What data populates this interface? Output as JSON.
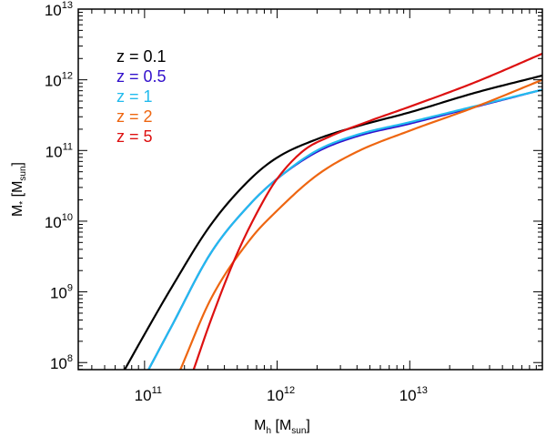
{
  "chart_data": {
    "type": "line",
    "xlabel": {
      "main": "M",
      "sub": "h",
      "unit_open": " [M",
      "unit_sub": "sun",
      "unit_close": "]"
    },
    "ylabel": {
      "main": "M",
      "sub": "*",
      "unit_open": " [M",
      "unit_sub": "sun",
      "unit_close": "]"
    },
    "xscale": "log",
    "yscale": "log",
    "xlim_log10": [
      10.5,
      14.0
    ],
    "ylim_log10": [
      7.9,
      13.0
    ],
    "x_major_ticks": [
      {
        "base": "10",
        "exp": "11",
        "log10": 11
      },
      {
        "base": "10",
        "exp": "12",
        "log10": 12
      },
      {
        "base": "10",
        "exp": "13",
        "log10": 13
      }
    ],
    "y_major_ticks": [
      {
        "base": "10",
        "exp": "8",
        "log10": 8
      },
      {
        "base": "10",
        "exp": "9",
        "log10": 9
      },
      {
        "base": "10",
        "exp": "10",
        "log10": 10
      },
      {
        "base": "10",
        "exp": "11",
        "log10": 11
      },
      {
        "base": "10",
        "exp": "12",
        "log10": 12
      },
      {
        "base": "10",
        "exp": "13",
        "log10": 13
      }
    ],
    "legend_position": "top-left",
    "series": [
      {
        "name": "z = 0.1",
        "color": "#000000",
        "log_mh": [
          10.85,
          11.0,
          11.2,
          11.5,
          11.8,
          12.0,
          12.3,
          12.6,
          13.0,
          13.5,
          14.0
        ],
        "log_mstar": [
          7.9,
          8.4,
          9.05,
          9.95,
          10.6,
          10.9,
          11.16,
          11.34,
          11.54,
          11.82,
          12.06
        ]
      },
      {
        "name": "z = 0.5",
        "color": "#3311cc",
        "log_mh": [
          11.03,
          11.2,
          11.5,
          11.8,
          12.0,
          12.3,
          12.6,
          13.0,
          13.5,
          14.0
        ],
        "log_mstar": [
          7.9,
          8.5,
          9.55,
          10.25,
          10.6,
          10.98,
          11.2,
          11.38,
          11.62,
          11.86
        ]
      },
      {
        "name": "z = 1",
        "color": "#22bbee",
        "log_mh": [
          11.03,
          11.2,
          11.5,
          11.8,
          12.0,
          12.3,
          12.6,
          13.0,
          13.5,
          14.0
        ],
        "log_mstar": [
          7.9,
          8.5,
          9.55,
          10.25,
          10.6,
          11.0,
          11.22,
          11.4,
          11.63,
          11.86
        ]
      },
      {
        "name": "z = 2",
        "color": "#ee6611",
        "log_mh": [
          11.27,
          11.5,
          11.8,
          12.0,
          12.3,
          12.6,
          13.0,
          13.5,
          14.0
        ],
        "log_mstar": [
          7.9,
          8.9,
          9.75,
          10.15,
          10.65,
          10.98,
          11.28,
          11.62,
          12.0
        ]
      },
      {
        "name": "z = 5",
        "color": "#dd1111",
        "log_mh": [
          11.37,
          11.5,
          11.7,
          11.9,
          12.0,
          12.2,
          12.4,
          12.7,
          13.0,
          13.5,
          14.0
        ],
        "log_mstar": [
          7.9,
          8.6,
          9.55,
          10.3,
          10.6,
          11.0,
          11.2,
          11.42,
          11.62,
          11.97,
          12.37
        ]
      }
    ]
  }
}
